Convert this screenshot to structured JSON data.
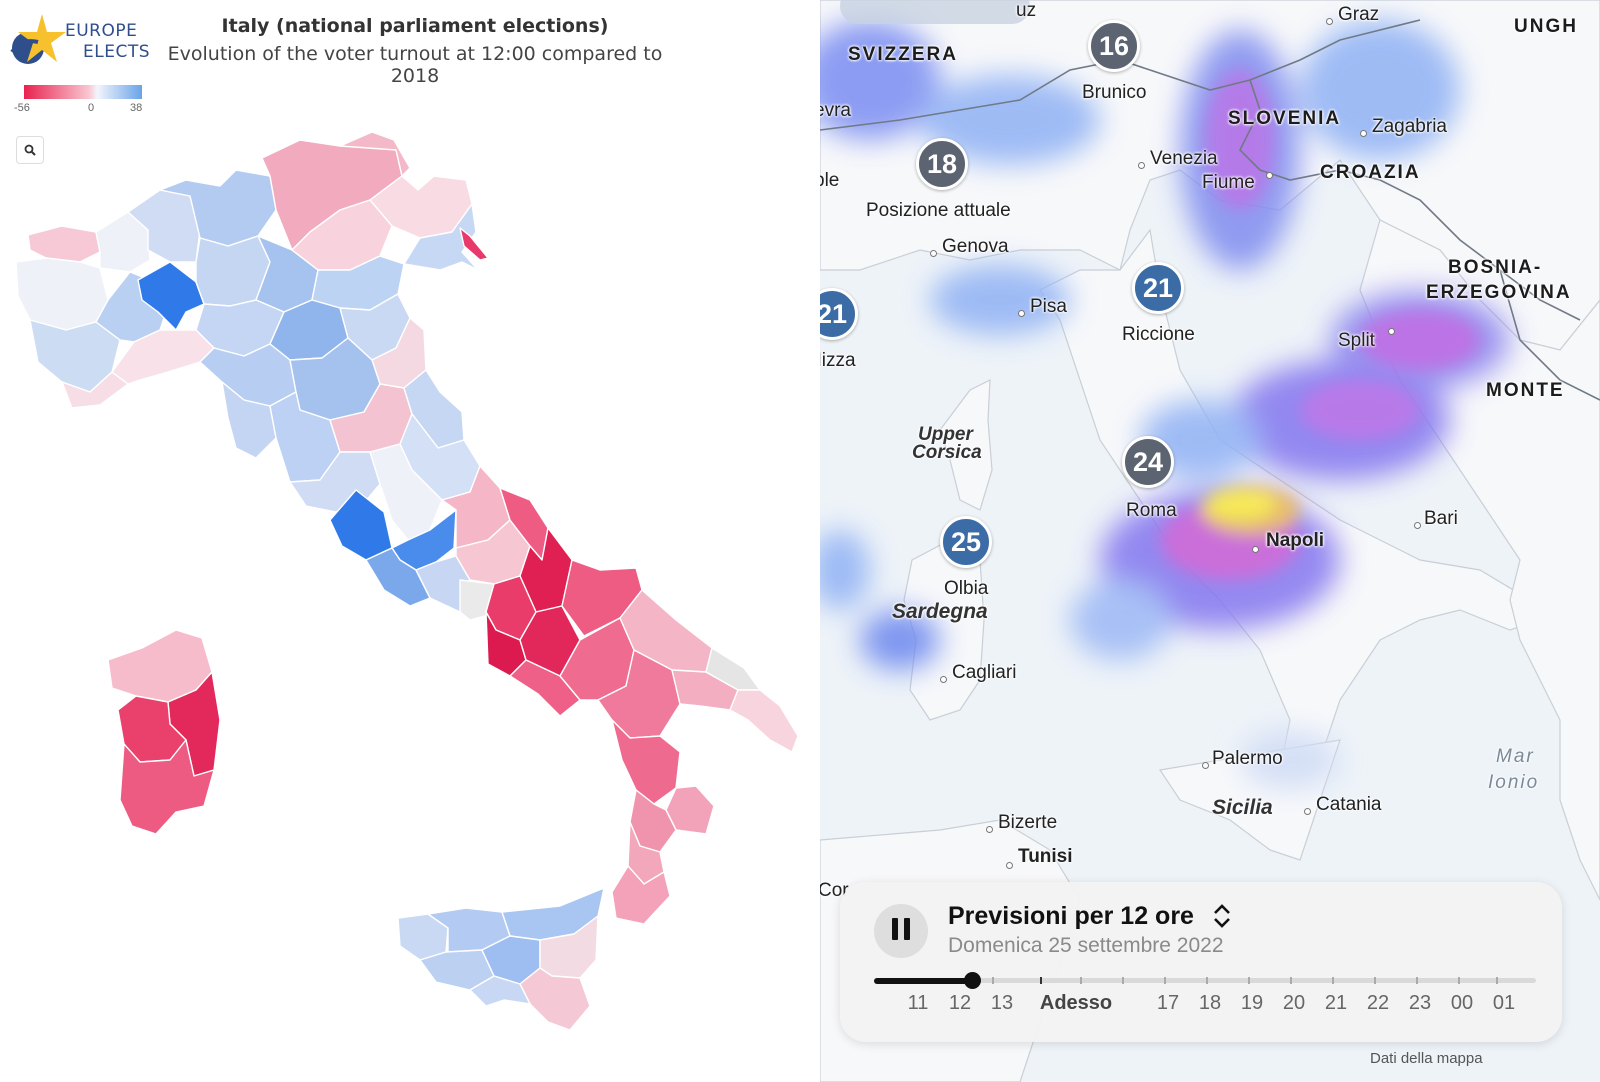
{
  "left_map": {
    "brand_line1": "EUROPE",
    "brand_line2": "ELECTS",
    "title": "Italy (national parliament elections)",
    "subtitle": "Evolution of the voter turnout at 12:00 compared to 2018",
    "legend": {
      "min": "-56",
      "mid": "0",
      "max": "38",
      "min_color": "#e8224f",
      "max_color": "#69a3ea"
    },
    "zoom_icon": "magnifier-icon"
  },
  "right_map": {
    "countries": {
      "switzerland": "SVIZZERA",
      "slovenia": "SLOVENIA",
      "croatia": "CROAZIA",
      "bosnia_1": "BOSNIA-",
      "bosnia_2": "ERZEGOVINA",
      "hungary": "UNGH",
      "montenegro": "MONTE"
    },
    "cities": {
      "graz": "Graz",
      "brunico": "Brunico",
      "ginevra": "evra",
      "zagabria": "Zagabria",
      "venezia": "Venezia",
      "fiume": "Fiume",
      "noble": "ble",
      "genova": "Genova",
      "pisa": "Pisa",
      "riccione": "Riccione",
      "nizza": "Nizza",
      "split": "Split",
      "roma": "Roma",
      "napoli": "Napoli",
      "bari": "Bari",
      "olbia": "Olbia",
      "cagliari": "Cagliari",
      "palermo": "Palermo",
      "catania": "Catania",
      "bizerte": "Bizerte",
      "tunisi": "Tunisi",
      "uz": "uz",
      "cor": "Cor"
    },
    "islands": {
      "corsica_1": "Upper",
      "corsica_2": "Corsica",
      "sardegna": "Sardegna",
      "sicilia": "Sicilia"
    },
    "sea": {
      "line1": "Mar",
      "line2": "Ionio"
    },
    "badges": {
      "brunico": "16",
      "posizione": "18",
      "riccione": "21",
      "nizza": "21",
      "roma": "24",
      "olbia": "25"
    },
    "current_position_label": "Posizione attuale",
    "forecast": {
      "title": "Previsioni per 12 ore",
      "date": "Domenica 25 settembre 2022",
      "progress": 0.15,
      "hours": [
        "11",
        "12",
        "13",
        "Adesso",
        "17",
        "18",
        "19",
        "20",
        "21",
        "22",
        "23",
        "00",
        "01"
      ]
    },
    "credit": "Dati della mappa"
  }
}
